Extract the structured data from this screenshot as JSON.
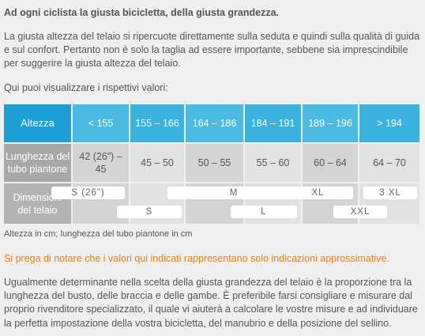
{
  "heading": "Ad ogni ciclista la giusta bicicletta, della giusta grandezza.",
  "intro": [
    "La giusta altezza del telaio si ripercuote direttamente sulla seduta e quindi sulla qualità di guida",
    "e sul confort. Pertanto non è solo la taglia ad essere importante, sebbene sia imprescindibile",
    "per suggerire la giusta altezza del telaio."
  ],
  "lead": "Qui puoi visualizzare i rispettivi valori:",
  "table": {
    "header": [
      "Altezza",
      "< 155",
      "155 – 166",
      "164 – 186",
      "184 – 191",
      "189 – 196",
      "> 194"
    ],
    "row_label": [
      "Lunghezza del",
      "tubo piantone"
    ],
    "row_values": [
      "42 (26”) – 45",
      "45 – 50",
      "50 – 55",
      "55 – 60",
      "60 – 64",
      "64 – 70"
    ],
    "sizes_label": [
      "Dimensioni",
      "del telaio"
    ],
    "sizes": [
      "S (26”)",
      "M",
      "XL",
      "3 XL",
      "S",
      "L",
      "XXL"
    ]
  },
  "caption": "Altezza in cm; lunghezza del tubo piantone in cm",
  "note": "Si prega di notare che i valori qui indicati rappresentano solo indicazioni approssimative.",
  "outro": [
    "Ugualmente determinante nella scelta della giusta grandezza del telaio è la proporzione tra la",
    "lunghezza del busto, delle braccia e delle gambe. È preferibile farsi consigliare e misurare dal",
    "proprio rivenditore specializzato, il quale vi aiuterà a calcolare le vostre misure e ad individuare",
    "la perfetta impostazione della vostra bicicletta, del manubrio e della posizione del sellino."
  ]
}
